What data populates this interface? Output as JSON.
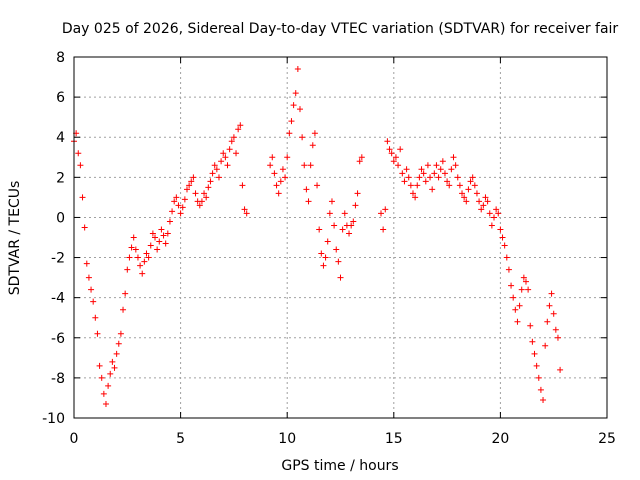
{
  "chart_data": {
    "type": "scatter",
    "title": "Day 025 of 2026, Sidereal Day-to-day VTEC variation (SDTVAR) for receiver fair",
    "xlabel": "GPS time / hours",
    "ylabel": "SDTVAR / TECUs",
    "xlim": [
      0,
      25
    ],
    "ylim": [
      -10,
      8
    ],
    "xticks": [
      0,
      5,
      10,
      15,
      20,
      25
    ],
    "yticks": [
      -10,
      -8,
      -6,
      -4,
      -2,
      0,
      2,
      4,
      6,
      8
    ],
    "grid": true,
    "marker": "+",
    "color": "#ff0000",
    "series": [
      {
        "name": "SDTVAR",
        "x": [
          0.0,
          0.1,
          0.2,
          0.3,
          0.4,
          0.5,
          0.6,
          0.7,
          0.8,
          0.9,
          1.0,
          1.1,
          1.2,
          1.3,
          1.4,
          1.5,
          1.6,
          1.7,
          1.8,
          1.9,
          2.0,
          2.1,
          2.2,
          2.3,
          2.4,
          2.5,
          2.6,
          2.7,
          2.8,
          2.9,
          3.0,
          3.1,
          3.2,
          3.3,
          3.4,
          3.5,
          3.6,
          3.7,
          3.8,
          3.9,
          4.0,
          4.1,
          4.2,
          4.3,
          4.4,
          4.5,
          4.6,
          4.7,
          4.8,
          4.9,
          5.0,
          5.1,
          5.2,
          5.3,
          5.4,
          5.5,
          5.6,
          5.7,
          5.8,
          5.9,
          6.0,
          6.1,
          6.2,
          6.3,
          6.4,
          6.5,
          6.6,
          6.7,
          6.8,
          6.9,
          7.0,
          7.1,
          7.2,
          7.3,
          7.4,
          7.5,
          7.6,
          7.7,
          7.8,
          7.9,
          8.0,
          8.1,
          9.2,
          9.3,
          9.4,
          9.5,
          9.6,
          9.7,
          9.8,
          9.9,
          10.0,
          10.1,
          10.2,
          10.3,
          10.4,
          10.5,
          10.6,
          10.7,
          10.8,
          10.9,
          11.0,
          11.1,
          11.2,
          11.3,
          11.4,
          11.5,
          11.6,
          11.7,
          11.8,
          11.9,
          12.0,
          12.1,
          12.2,
          12.3,
          12.4,
          12.5,
          12.6,
          12.7,
          12.8,
          12.9,
          13.0,
          13.1,
          13.2,
          13.3,
          13.4,
          13.5,
          14.4,
          14.5,
          14.6,
          14.7,
          14.8,
          14.9,
          15.0,
          15.1,
          15.2,
          15.3,
          15.4,
          15.5,
          15.6,
          15.7,
          15.8,
          15.9,
          16.0,
          16.1,
          16.2,
          16.3,
          16.4,
          16.5,
          16.6,
          16.7,
          16.8,
          16.9,
          17.0,
          17.1,
          17.2,
          17.3,
          17.4,
          17.5,
          17.6,
          17.7,
          17.8,
          17.9,
          18.0,
          18.1,
          18.2,
          18.3,
          18.4,
          18.5,
          18.6,
          18.7,
          18.8,
          18.9,
          19.0,
          19.1,
          19.2,
          19.3,
          19.4,
          19.5,
          19.6,
          19.7,
          19.8,
          19.9,
          20.0,
          20.1,
          20.2,
          20.3,
          20.4,
          20.5,
          20.6,
          20.7,
          20.8,
          20.9,
          21.0,
          21.1,
          21.2,
          21.3,
          21.4,
          21.5,
          21.6,
          21.7,
          21.8,
          21.9,
          22.0,
          22.1,
          22.2,
          22.3,
          22.4,
          22.5,
          22.6,
          22.7,
          22.8
        ],
        "y": [
          3.8,
          4.2,
          3.2,
          2.6,
          1.0,
          -0.5,
          -2.3,
          -3.0,
          -3.6,
          -4.2,
          -5.0,
          -5.8,
          -7.4,
          -8.0,
          -8.8,
          -9.3,
          -8.4,
          -7.8,
          -7.2,
          -7.5,
          -6.8,
          -6.3,
          -5.8,
          -4.6,
          -3.8,
          -2.6,
          -2.0,
          -1.5,
          -1.0,
          -1.6,
          -2.0,
          -2.4,
          -2.8,
          -2.2,
          -1.8,
          -2.0,
          -1.4,
          -0.8,
          -1.0,
          -1.6,
          -1.2,
          -0.6,
          -0.9,
          -1.3,
          -0.8,
          -0.2,
          0.3,
          0.8,
          1.0,
          0.6,
          0.2,
          0.5,
          0.9,
          1.4,
          1.6,
          1.8,
          2.0,
          1.2,
          0.8,
          0.6,
          0.8,
          1.2,
          1.0,
          1.5,
          1.8,
          2.2,
          2.6,
          2.4,
          2.0,
          2.8,
          3.2,
          3.0,
          2.6,
          3.4,
          3.8,
          4.0,
          3.2,
          4.4,
          4.6,
          1.6,
          0.4,
          0.2,
          2.6,
          3.0,
          2.2,
          1.6,
          1.2,
          1.8,
          2.4,
          2.0,
          3.0,
          4.2,
          4.8,
          5.6,
          6.2,
          7.4,
          5.4,
          4.0,
          2.6,
          1.4,
          0.8,
          2.6,
          3.6,
          4.2,
          1.6,
          -0.6,
          -1.8,
          -2.4,
          -2.0,
          -1.2,
          0.2,
          0.8,
          -0.4,
          -1.6,
          -2.2,
          -3.0,
          -0.6,
          0.2,
          -0.4,
          -0.8,
          -0.4,
          -0.2,
          0.6,
          1.2,
          2.8,
          3.0,
          0.2,
          -0.6,
          0.4,
          3.8,
          3.4,
          3.2,
          2.8,
          3.0,
          2.6,
          3.4,
          2.2,
          1.8,
          2.4,
          2.0,
          1.6,
          1.2,
          1.0,
          1.6,
          2.0,
          2.4,
          2.2,
          1.8,
          2.6,
          2.0,
          1.4,
          2.2,
          2.6,
          2.0,
          2.4,
          2.8,
          2.2,
          1.8,
          1.6,
          2.4,
          3.0,
          2.6,
          2.0,
          1.6,
          1.2,
          1.0,
          0.8,
          1.4,
          1.8,
          2.0,
          1.6,
          1.2,
          0.8,
          0.4,
          0.6,
          1.0,
          0.8,
          0.2,
          -0.4,
          0.0,
          0.4,
          0.2,
          -0.6,
          -1.0,
          -1.4,
          -2.0,
          -2.6,
          -3.4,
          -4.0,
          -4.6,
          -5.2,
          -4.4,
          -3.6,
          -3.0,
          -3.2,
          -3.6,
          -5.4,
          -6.2,
          -6.8,
          -7.4,
          -8.0,
          -8.6,
          -9.1,
          -6.4,
          -5.2,
          -4.4,
          -3.8,
          -4.8,
          -5.6,
          -6.0,
          -7.6
        ]
      }
    ]
  }
}
